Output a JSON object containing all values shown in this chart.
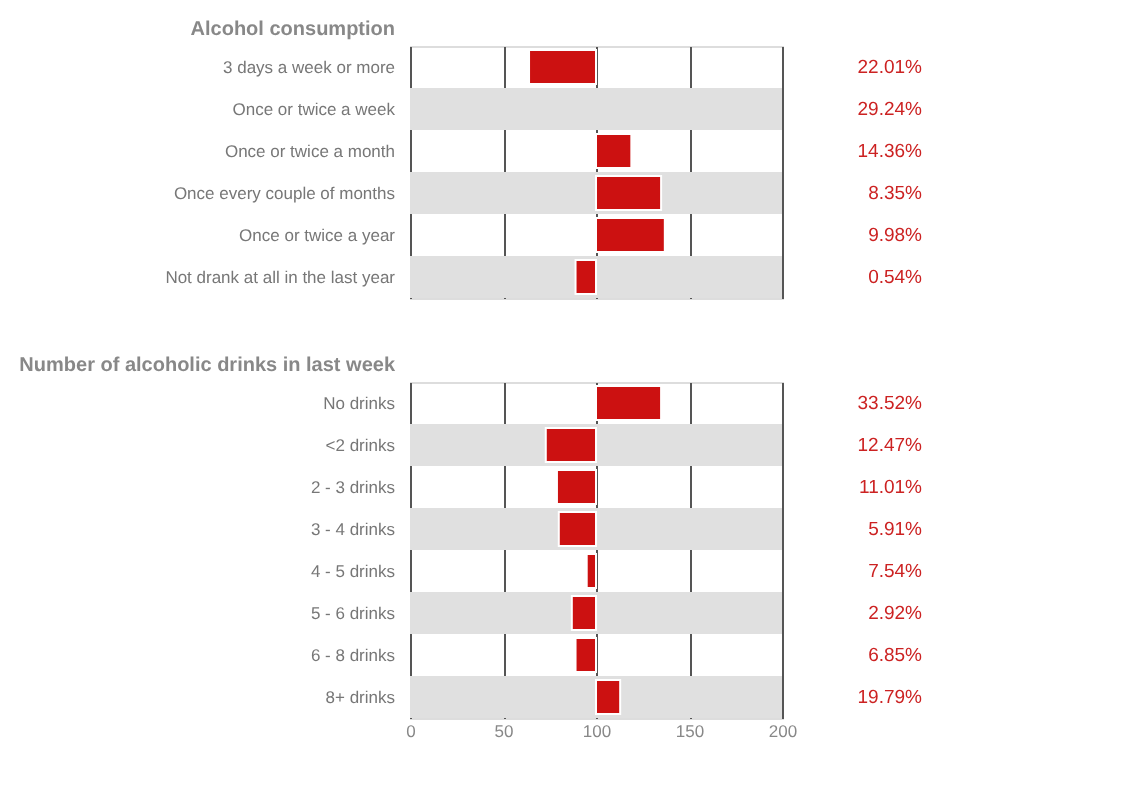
{
  "chart_data": [
    {
      "type": "bar",
      "orientation": "horizontal",
      "title": "Alcohol consumption",
      "categories": [
        "3 days a week or more",
        "Once or twice a week",
        "Once or twice a month",
        "Once every couple of months",
        "Once or twice a year",
        "Not drank at all in the last year"
      ],
      "base": [
        100,
        null,
        100,
        100,
        100,
        100
      ],
      "values": [
        -36,
        null,
        19,
        35,
        37,
        -11
      ],
      "color": "#cc1111",
      "annotations": [
        "22.01%",
        "29.24%",
        "14.36%",
        "8.35%",
        "9.98%",
        "0.54%"
      ],
      "xlim": [
        0,
        200
      ],
      "xticks": [
        0,
        50,
        100,
        150,
        200
      ],
      "grid": "x",
      "tick_labels": "y",
      "bands": [
        {
          "axis": "y",
          "from": "Once or twice a week",
          "to": "Once or twice a week",
          "color": "#e0e0e0"
        },
        {
          "axis": "y",
          "from": "Once every couple of months",
          "to": "Once every couple of months",
          "color": "#e0e0e0"
        },
        {
          "axis": "y",
          "from": "Not drank at all in the last year",
          "to": "Not drank at all in the last year",
          "color": "#e0e0e0"
        }
      ]
    },
    {
      "type": "bar",
      "orientation": "horizontal",
      "title": "Number of alcoholic drinks in last week",
      "categories": [
        "No drinks",
        "<2 drinks",
        "2 - 3 drinks",
        "3 - 4 drinks",
        "4 - 5 drinks",
        "5 - 6 drinks",
        "6 - 8 drinks",
        "8+ drinks"
      ],
      "base": [
        100,
        100,
        100,
        100,
        100,
        100,
        100,
        100
      ],
      "values": [
        35,
        -27,
        -21,
        -20,
        -5,
        -13,
        -11,
        13
      ],
      "color": "#cc1111",
      "annotations": [
        "33.52%",
        "12.47%",
        "11.01%",
        "5.91%",
        "7.54%",
        "2.92%",
        "6.85%",
        "19.79%"
      ],
      "xlim": [
        0,
        200
      ],
      "xticks": [
        0,
        50,
        100,
        150,
        200
      ],
      "grid": "x",
      "bands": [
        {
          "axis": "y",
          "from": "<2 drinks",
          "to": "<2 drinks",
          "color": "#e0e0e0"
        },
        {
          "axis": "y",
          "from": "3 - 4 drinks",
          "to": "3 - 4 drinks",
          "color": "#e0e0e0"
        },
        {
          "axis": "y",
          "from": "5 - 6 drinks",
          "to": "5 - 6 drinks",
          "color": "#e0e0e0"
        },
        {
          "axis": "y",
          "from": "8+ drinks",
          "to": "8+ drinks",
          "color": "#e0e0e0"
        }
      ]
    }
  ]
}
